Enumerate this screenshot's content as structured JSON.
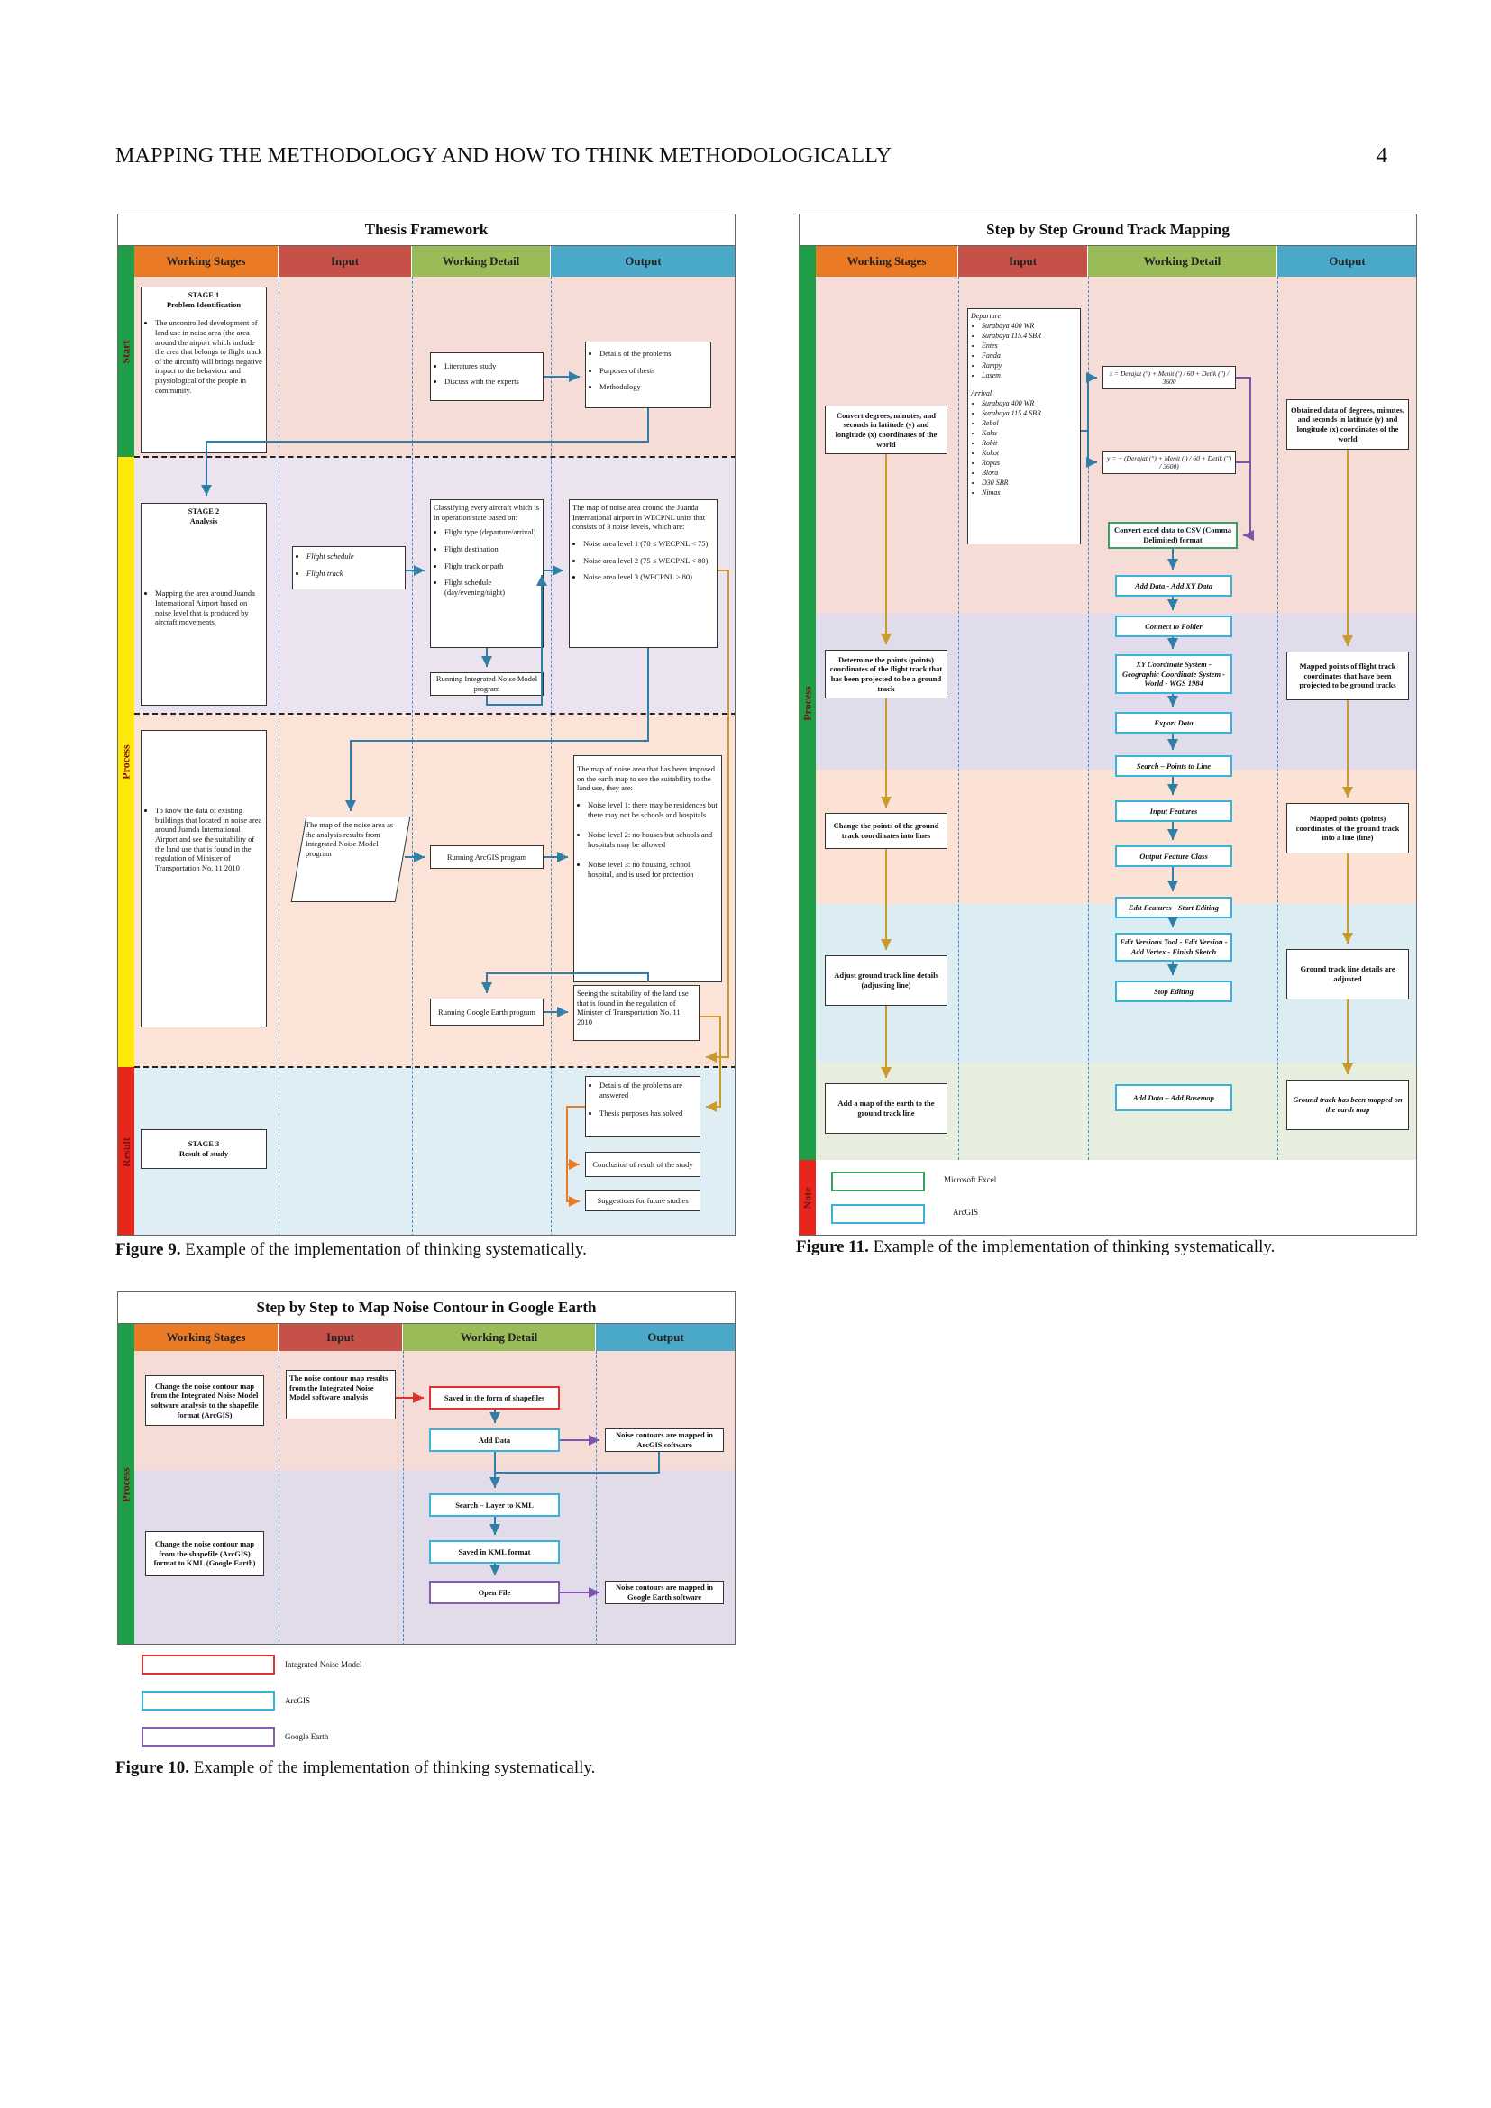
{
  "page": {
    "running_head": "MAPPING THE METHODOLOGY AND HOW TO THINK METHODOLOGICALLY",
    "page_number": "4"
  },
  "columns": {
    "stages": "Working Stages",
    "input": "Input",
    "detail": "Working Detail",
    "output": "Output"
  },
  "fig9": {
    "title": "Thesis Framework",
    "caption_label": "Figure 9.",
    "caption_text": " Example of the implementation of thinking systematically.",
    "side": {
      "start": "Start",
      "process": "Process",
      "result": "Result"
    },
    "stage1_title": "STAGE 1",
    "stage1_sub": "Problem Identification",
    "stage1_bullet": "The uncontrolled development of land use in noise area (the area around the airport which include the area that belongs to flight track of the aircraft) will brings negative impact to the behaviour and physiological of the people in community.",
    "lit": [
      "Literatures study",
      "Discuss with the experts"
    ],
    "out1": [
      "Details of the problems",
      "Purposes of thesis",
      "Methodology"
    ],
    "stage2_title": "STAGE 2",
    "stage2_sub": "Analysis",
    "stage2_bullet": "Mapping the area around Juanda International Airport based on noise level that is produced by aircraft movements",
    "flight_inputs": [
      "Flight schedule",
      "Flight track"
    ],
    "classify_intro": "Classifying every aircraft which is in operation state based on:",
    "classify_items": [
      "Flight type (departure/arrival)",
      "Flight destination",
      "Flight track or path",
      "Flight schedule (day/evening/night)"
    ],
    "inm": "Running Integrated Noise Model program",
    "noise_map_intro": "The map of noise area around the Juanda International airport in WECPNL units that consists of 3 noise levels, which are:",
    "noise_levels": [
      "Noise area level 1 (70 ≤ WECPNL < 75)",
      "Noise area level 2 (75 ≤ WECPNL < 80)",
      "Noise area level 3 (WECPNL ≥ 80)"
    ],
    "stage2b_bullet": "To know the data of existing buildings that located in noise area around Juanda International Airport and see the suitability of the land use that is found in the regulation of Minister of Transportation No. 11 2010",
    "map_input": "The map of the noise area as the analysis results from Integrated Noise Model program",
    "arcgis_run": "Running ArcGIS program",
    "imposed_intro": "The map of noise area that has been imposed on the earth map to see the suitability to the land use, they are:",
    "imposed_items": [
      "Noise level 1: there may be residences but there may not be schools and hospitals",
      "Noise level 2: no houses but schools and hospitals may be allowed",
      "Noise level 3: no housing, school, hospital, and is used for protection"
    ],
    "ge_run": "Running Google Earth program",
    "seeing": "Seeing the suitability of the land use that is found in the regulation of Minister of Transportation No. 11 2010",
    "stage3_title": "STAGE 3",
    "stage3_sub": "Result of study",
    "result_items": [
      "Details of the problems are answered",
      "Thesis purposes has solved"
    ],
    "conclusion": "Conclusion of result of the study",
    "suggestions": "Suggestions for future studies"
  },
  "fig11": {
    "title": "Step by Step Ground Track Mapping",
    "caption_label": "Figure 11.",
    "caption_text": " Example of the implementation of thinking systematically.",
    "side": {
      "process": "Process",
      "note": "Note"
    },
    "departure_label": "Departure",
    "departure": [
      "Surabaya 400 WR",
      "Surabaya 115.4 SBR",
      "Entes",
      "Fanda",
      "Rampy",
      "Lasem"
    ],
    "arrival_label": "Arrival",
    "arrival": [
      "Surabaya 400 WR",
      "Surabaya 115.4 SBR",
      "Rebol",
      "Kaku",
      "Robit",
      "Kokot",
      "Ropus",
      "Blora",
      "D30 SBR",
      "Nimas"
    ],
    "formula_x": "x = Derajat (°) + Menit (') / 60 + Detik ('') / 3600",
    "formula_y": "y = − (Derajat (°) + Menit (') / 60 + Detik ('') / 3600)",
    "stages": [
      "Convert degrees, minutes, and seconds in latitude (y) and longitude (x) coordinates of the world",
      "Determine the points (points) coordinates of the flight track that has been projected to be a ground track",
      "Change the points of the ground track coordinates into lines",
      "Adjust ground track line details (adjusting line)",
      "Add a map of the earth to the ground track line"
    ],
    "steps": [
      "Convert excel data to CSV (Comma Delimited) format",
      "Add Data - Add XY Data",
      "Connect to Folder",
      "XY Coordinate System - Geographic Coordinate System - World - WGS 1984",
      "Export Data",
      "Search – Points to Line",
      "Input Features",
      "Output Feature Class",
      "Edit Features - Start Editing",
      "Edit Versions Tool - Edit Version - Add Vertex - Finish Sketch",
      "Stop Editing",
      "Add Data – Add Basemap"
    ],
    "outputs": [
      "Obtained data of degrees, minutes, and seconds in latitude (y) and longitude (x) coordinates of the world",
      "Mapped points of flight track coordinates that have been projected to be ground tracks",
      "Mapped points (points) coordinates of the ground track into a line (line)",
      "Ground track line details are adjusted",
      "Ground track has been mapped on the earth map"
    ],
    "legend": [
      "Microsoft Excel",
      "ArcGIS"
    ]
  },
  "fig10": {
    "title": "Step by Step to Map Noise Contour in Google Earth",
    "caption_label": "Figure 10.",
    "caption_text": " Example of the implementation of thinking systematically.",
    "side": {
      "process": "Process"
    },
    "stage_a": "Change the noise contour map from the Integrated Noise Model software analysis to the shapefile format (ArcGIS)",
    "stage_b": "Change the noise contour map from the shapefile (ArcGIS) format to KML (Google Earth)",
    "input": "The noise contour map results from the Integrated Noise Model software analysis",
    "steps": [
      "Saved in the form of shapefiles",
      "Add Data",
      "Search – Layer to KML",
      "Saved in KML format",
      "Open File"
    ],
    "outputs": [
      "Noise contours are mapped in ArcGIS software",
      "Noise contours are mapped in Google Earth software"
    ],
    "legend": [
      "Integrated Noise Model",
      "ArcGIS",
      "Google Earth"
    ]
  },
  "colors": {
    "stages": "#ea7a24",
    "input": "#c55148",
    "detail": "#99bb58",
    "output": "#4aa9c9",
    "start": "#1f9e48",
    "process": "#ffe80a",
    "result": "#e8261c",
    "excel": "#36a060",
    "arcgis": "#39b4d8",
    "inm": "#e03030",
    "ge": "#8a5cb8",
    "arrow_blue": "#2f7fa6",
    "arrow_gold": "#c99a2e",
    "arrow_purple": "#7e55ad"
  }
}
